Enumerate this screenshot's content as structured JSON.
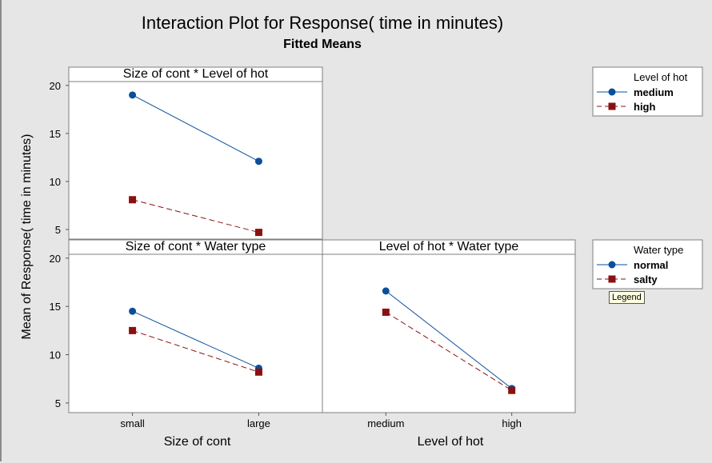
{
  "title": "Interaction Plot for Response( time in minutes)",
  "subtitle": "Fitted Means",
  "ylabel": "Mean of Response( time in minutes)",
  "tooltip": "Legend",
  "colors": {
    "series1": "#0a4f9c",
    "series2": "#8b1010"
  },
  "chart_data": [
    {
      "type": "line",
      "panel_title": "Size of cont * Level of hot",
      "categories": [
        "small",
        "large"
      ],
      "ylim": [
        4,
        20.4
      ],
      "yticks": [
        5,
        10,
        15,
        20
      ],
      "series": [
        {
          "name": "medium",
          "values": [
            19.0,
            12.1
          ],
          "marker": "circle",
          "style": "solid"
        },
        {
          "name": "high",
          "values": [
            8.1,
            4.7
          ],
          "marker": "square",
          "style": "dashed"
        }
      ]
    },
    {
      "type": "line",
      "panel_title": "Size of cont * Water type",
      "xlabel": "Size of cont",
      "categories": [
        "small",
        "large"
      ],
      "ylim": [
        4,
        20.4
      ],
      "yticks": [
        5,
        10,
        15,
        20
      ],
      "series": [
        {
          "name": "normal",
          "values": [
            14.5,
            8.6
          ],
          "marker": "circle",
          "style": "solid"
        },
        {
          "name": "salty",
          "values": [
            12.5,
            8.2
          ],
          "marker": "square",
          "style": "dashed"
        }
      ]
    },
    {
      "type": "line",
      "panel_title": "Level of hot * Water type",
      "xlabel": "Level of hot",
      "categories": [
        "medium",
        "high"
      ],
      "ylim": [
        4,
        20.4
      ],
      "series": [
        {
          "name": "normal",
          "values": [
            16.6,
            6.5
          ],
          "marker": "circle",
          "style": "solid"
        },
        {
          "name": "salty",
          "values": [
            14.4,
            6.3
          ],
          "marker": "square",
          "style": "dashed"
        }
      ]
    }
  ],
  "legends": [
    {
      "title": "Level of hot",
      "items": [
        "medium",
        "high"
      ]
    },
    {
      "title": "Water type",
      "items": [
        "normal",
        "salty"
      ]
    }
  ]
}
